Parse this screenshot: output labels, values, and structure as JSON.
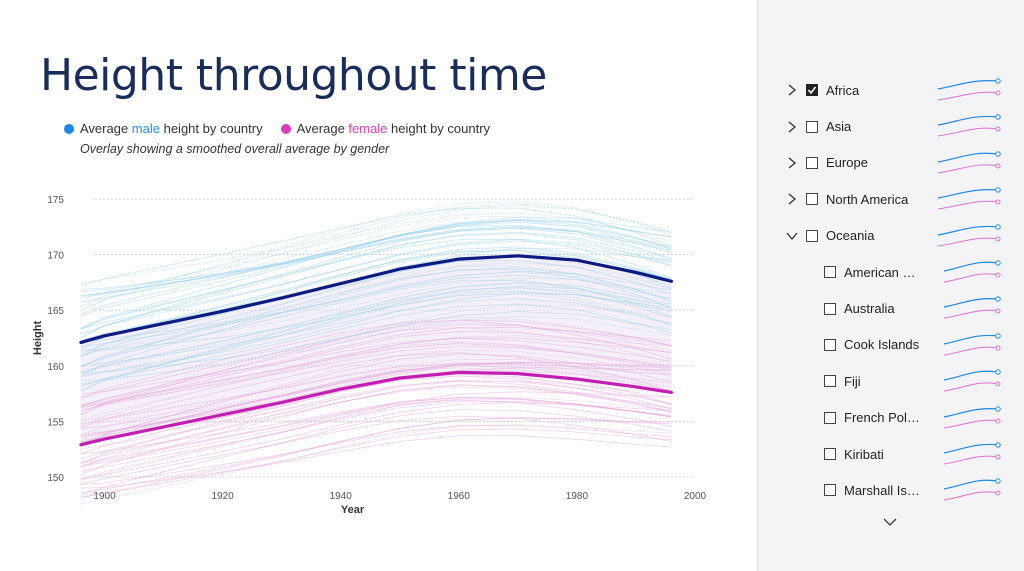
{
  "title": "Height throughout time",
  "legend": {
    "male": {
      "pre": "Average ",
      "hl": "male",
      "post": " height by country",
      "color": "#1e88e5"
    },
    "female": {
      "pre": "Average ",
      "hl": "female",
      "post": " height by country",
      "color": "#d63fb8"
    }
  },
  "subtitle": "Overlay showing a smoothed overall average by gender",
  "chart_data": {
    "type": "line",
    "xlabel": "Year",
    "ylabel": "Height",
    "xlim": [
      1895,
      2000
    ],
    "ylim": [
      149,
      176
    ],
    "x_ticks": [
      1900,
      1920,
      1940,
      1960,
      1980,
      2000
    ],
    "y_ticks": [
      150,
      155,
      160,
      165,
      170,
      175
    ],
    "grid": "horizontal dotted",
    "series": [
      {
        "name": "male",
        "color": "#0d1a80",
        "x": [
          1896,
          1900,
          1910,
          1920,
          1930,
          1940,
          1950,
          1960,
          1970,
          1980,
          1990,
          1996
        ],
        "y": [
          162.1,
          162.7,
          163.8,
          164.9,
          166.1,
          167.4,
          168.7,
          169.6,
          169.9,
          169.5,
          168.4,
          167.6
        ]
      },
      {
        "name": "female",
        "color": "#c21fb2",
        "x": [
          1896,
          1900,
          1910,
          1920,
          1930,
          1940,
          1950,
          1960,
          1970,
          1980,
          1990,
          1996
        ],
        "y": [
          152.9,
          153.4,
          154.5,
          155.6,
          156.7,
          157.9,
          158.9,
          159.4,
          159.3,
          158.8,
          158.1,
          157.6
        ]
      }
    ]
  },
  "slicer": {
    "expand_icon": "chevron-down-icon",
    "items": [
      {
        "label": "Africa",
        "checked": true,
        "level": 0,
        "expanded": false
      },
      {
        "label": "Asia",
        "checked": false,
        "level": 0,
        "expanded": false
      },
      {
        "label": "Europe",
        "checked": false,
        "level": 0,
        "expanded": false
      },
      {
        "label": "North America",
        "checked": false,
        "level": 0,
        "expanded": false
      },
      {
        "label": "Oceania",
        "checked": false,
        "level": 0,
        "expanded": true
      },
      {
        "label": "American S...",
        "checked": false,
        "level": 1
      },
      {
        "label": "Australia",
        "checked": false,
        "level": 1
      },
      {
        "label": "Cook Islands",
        "checked": false,
        "level": 1
      },
      {
        "label": "Fiji",
        "checked": false,
        "level": 1
      },
      {
        "label": "French Poly...",
        "checked": false,
        "level": 1
      },
      {
        "label": "Kiribati",
        "checked": false,
        "level": 1
      },
      {
        "label": "Marshall Isla...",
        "checked": false,
        "level": 1
      }
    ]
  }
}
